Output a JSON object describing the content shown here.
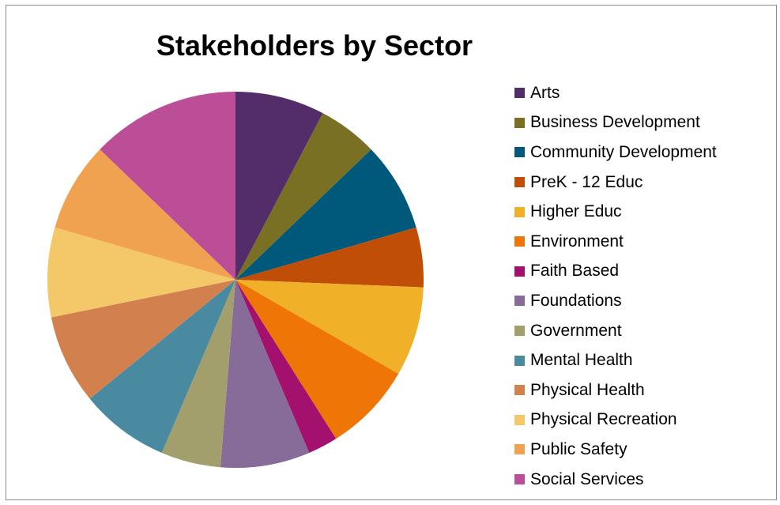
{
  "chart_data": {
    "type": "pie",
    "title": "Stakeholders by Sector",
    "legend_position": "right",
    "slices": [
      {
        "label": "Arts",
        "value": 3,
        "color": "#532c6a"
      },
      {
        "label": "Business Development",
        "value": 2,
        "color": "#7a7024"
      },
      {
        "label": "Community Development",
        "value": 3,
        "color": "#00587a"
      },
      {
        "label": "PreK - 12 Educ",
        "value": 2,
        "color": "#c14e06"
      },
      {
        "label": "Higher Educ",
        "value": 3,
        "color": "#f0b128"
      },
      {
        "label": "Environment",
        "value": 3,
        "color": "#ee7506"
      },
      {
        "label": "Faith Based",
        "value": 1,
        "color": "#a4106e"
      },
      {
        "label": "Foundations",
        "value": 3,
        "color": "#876c9a"
      },
      {
        "label": "Government",
        "value": 2,
        "color": "#a29f6c"
      },
      {
        "label": "Mental Health",
        "value": 3,
        "color": "#4a8aa0"
      },
      {
        "label": "Physical Health",
        "value": 3,
        "color": "#d2814e"
      },
      {
        "label": "Physical Recreation",
        "value": 3,
        "color": "#f4c868"
      },
      {
        "label": "Public Safety",
        "value": 3,
        "color": "#f0a250"
      },
      {
        "label": "Social Services",
        "value": 5,
        "color": "#bb4e96"
      }
    ]
  }
}
